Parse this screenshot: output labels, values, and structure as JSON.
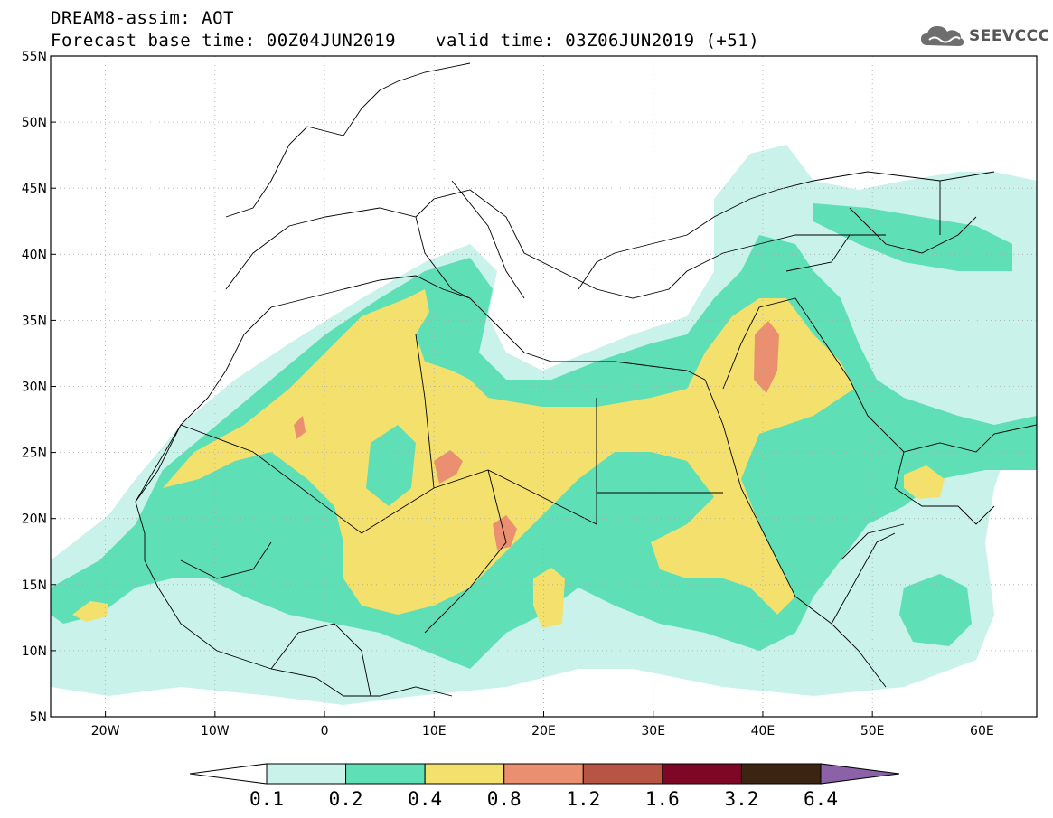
{
  "header": {
    "line1": "DREAM8-assim: AOT",
    "line2": "Forecast base time: 00Z04JUN2019",
    "line3": "valid time: 03Z06JUN2019 (+51)"
  },
  "logo": {
    "text": "SEEVCCC",
    "icon": "cloud-icon"
  },
  "map": {
    "lat_labels": [
      "55N",
      "50N",
      "45N",
      "40N",
      "35N",
      "30N",
      "25N",
      "20N",
      "15N",
      "10N",
      "5N"
    ],
    "lon_labels": [
      "20W",
      "10W",
      "0",
      "10E",
      "20E",
      "30E",
      "40E",
      "50E",
      "60E"
    ],
    "lon_range": [
      -25,
      65
    ],
    "lat_range": [
      5,
      55
    ],
    "grid": "dotted"
  },
  "colorbar": {
    "labels": [
      "0.1",
      "0.2",
      "0.4",
      "0.8",
      "1.2",
      "1.6",
      "3.2",
      "6.4"
    ],
    "colors": [
      "#ffffff",
      "#c8f2ea",
      "#5fdfb6",
      "#f4e06c",
      "#ea9070",
      "#b85444",
      "#7e0726",
      "#3c2412",
      "#8b62a8"
    ]
  }
}
